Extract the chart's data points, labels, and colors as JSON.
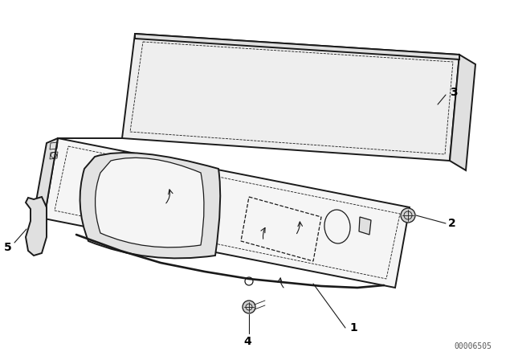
{
  "background_color": "#ffffff",
  "line_color": "#1a1a1a",
  "label_color": "#000000",
  "watermark": "00006505",
  "figsize": [
    6.4,
    4.48
  ],
  "dpi": 100,
  "lw_main": 1.4,
  "lw_med": 0.9,
  "lw_thin": 0.6,
  "panel_face": "#f5f5f5",
  "panel_side": "#e0e0e0",
  "panel_top": "#eeeeee",
  "hump_face": "#e2e2e2",
  "dark_gray": "#bbbbbb",
  "label_fontsize": 10
}
